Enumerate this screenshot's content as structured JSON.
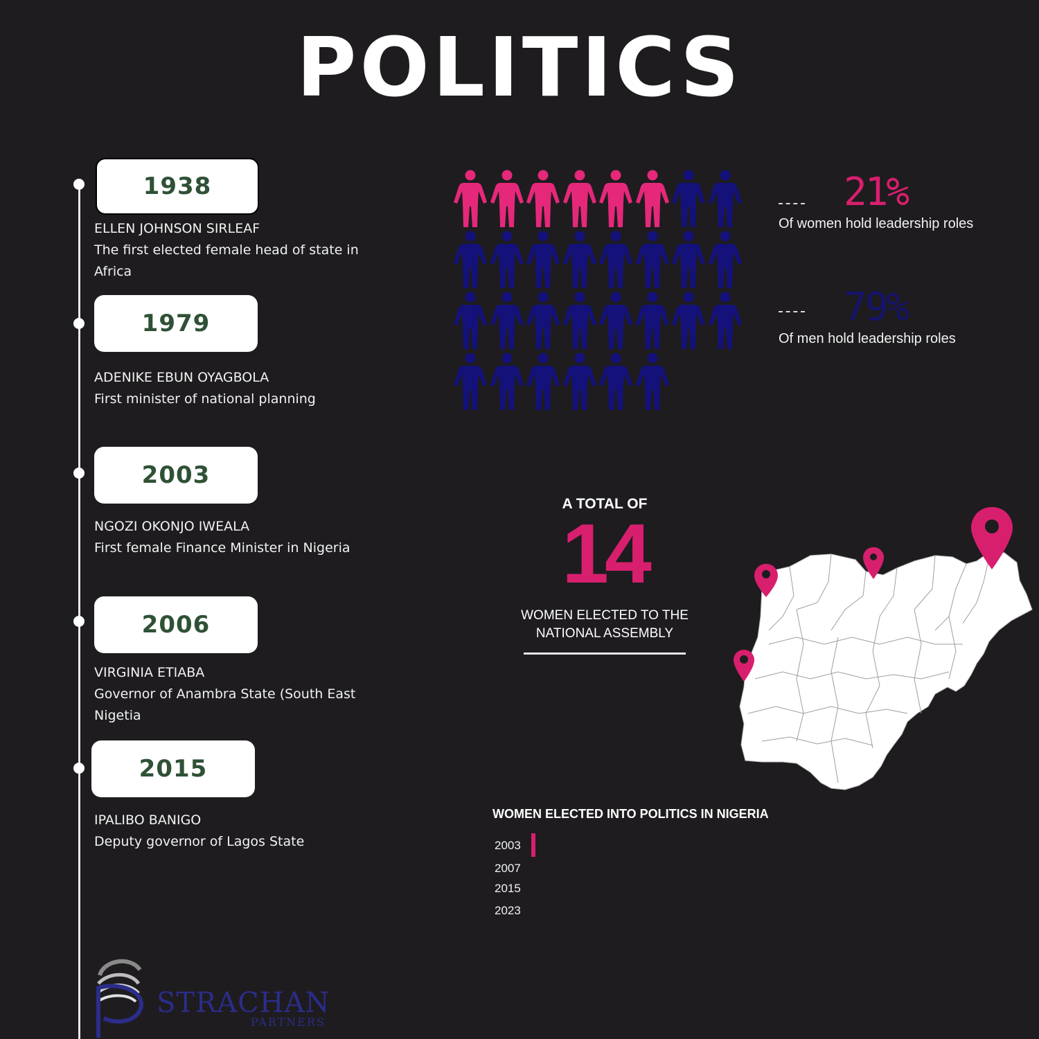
{
  "title": "POLITICS",
  "timeline": [
    {
      "year": "1938",
      "name": "ELLEN JOHNSON SIRLEAF",
      "desc": "The first elected female head of state in Africa"
    },
    {
      "year": "1979",
      "name": "ADENIKE EBUN OYAGBOLA",
      "desc": "First minister of national planning"
    },
    {
      "year": "2003",
      "name": "NGOZI OKONJO IWEALA",
      "desc": "First female Finance Minister in Nigeria"
    },
    {
      "year": "2006",
      "name": "VIRGINIA ETIABA",
      "desc": "Governor of Anambra State (South East Nigetia"
    },
    {
      "year": "2015",
      "name": "IPALIBO BANIGO",
      "desc": "Deputy governor of Lagos State"
    }
  ],
  "pictogram": {
    "total": 30,
    "women": 6,
    "women_color": "#e5287a",
    "men_color": "#14127a"
  },
  "stats": [
    {
      "pct": "21%",
      "caption": "Of women hold leadership roles",
      "color": "#d81f6e"
    },
    {
      "pct": "79%",
      "caption": "Of men hold leadership roles",
      "color": "#16146e"
    }
  ],
  "total_block": {
    "label": "A TOTAL OF",
    "number": "14",
    "caption": "WOMEN ELECTED TO THE NATIONAL ASSEMBLY"
  },
  "map": {
    "country": "Nigeria",
    "fill": "#ffffff",
    "pin_color": "#d81f6e"
  },
  "chart_data": {
    "type": "bar",
    "title": "WOMEN ELECTED INTO POLITICS IN NIGERIA",
    "categories": [
      "2003",
      "2007",
      "2015",
      "2023"
    ],
    "values": [
      1,
      0,
      0,
      0
    ],
    "bar_color": "#d81f6e"
  },
  "logo": {
    "name": "STRACHAN",
    "sub": "PARTNERS"
  }
}
